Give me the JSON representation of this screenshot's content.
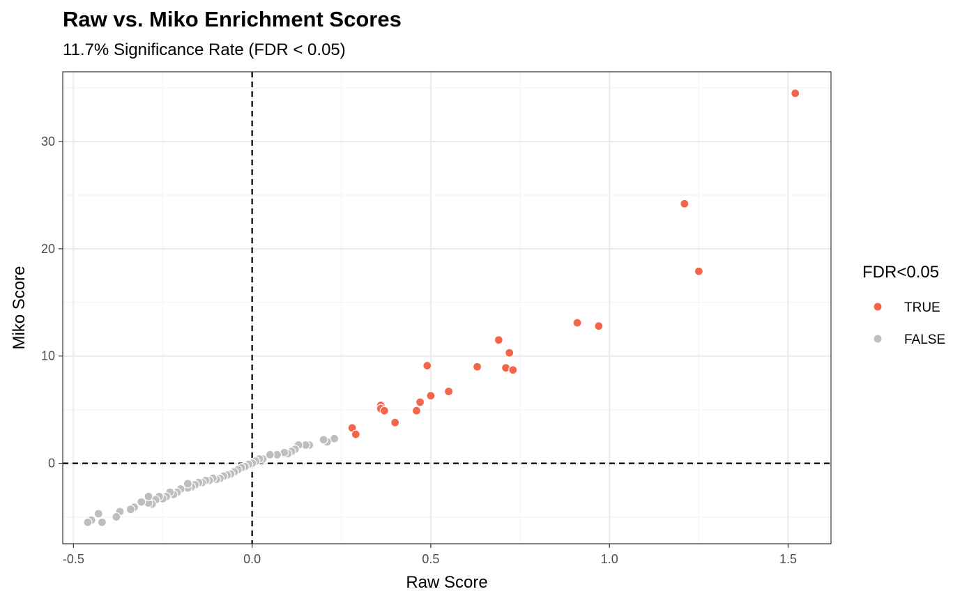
{
  "chart_data": {
    "type": "scatter",
    "title": "Raw vs. Miko Enrichment Scores",
    "subtitle": "11.7% Significance Rate (FDR < 0.05)",
    "xlabel": "Raw Score",
    "ylabel": "Miko Score",
    "xlim": [
      -0.53,
      1.62
    ],
    "ylim": [
      -7.5,
      36.5
    ],
    "x_ticks": [
      -0.5,
      0.0,
      0.5,
      1.0,
      1.5
    ],
    "x_tick_labels": [
      "-0.5",
      "0.0",
      "0.5",
      "1.0",
      "1.5"
    ],
    "y_ticks": [
      0,
      10,
      20,
      30
    ],
    "y_tick_labels": [
      "0",
      "10",
      "20",
      "30"
    ],
    "grid": true,
    "reference_lines": [
      {
        "axis": "x",
        "value": 0,
        "style": "dashed"
      },
      {
        "axis": "y",
        "value": 0,
        "style": "dashed"
      }
    ],
    "legend": {
      "title": "FDR<0.05",
      "placement": "right",
      "entries": [
        {
          "label": "TRUE",
          "color": "#f4664a"
        },
        {
          "label": "FALSE",
          "color": "#bebebe"
        }
      ]
    },
    "series": [
      {
        "name": "TRUE",
        "color": "#f4664a",
        "points": [
          [
            1.52,
            34.5
          ],
          [
            1.21,
            24.2
          ],
          [
            1.25,
            17.9
          ],
          [
            0.91,
            13.1
          ],
          [
            0.97,
            12.8
          ],
          [
            0.69,
            11.5
          ],
          [
            0.72,
            10.3
          ],
          [
            0.49,
            9.1
          ],
          [
            0.63,
            9.0
          ],
          [
            0.71,
            8.9
          ],
          [
            0.73,
            8.7
          ],
          [
            0.55,
            6.7
          ],
          [
            0.5,
            6.3
          ],
          [
            0.47,
            5.7
          ],
          [
            0.36,
            5.4
          ],
          [
            0.36,
            5.1
          ],
          [
            0.37,
            4.9
          ],
          [
            0.46,
            4.9
          ],
          [
            0.4,
            3.8
          ],
          [
            0.28,
            3.3
          ],
          [
            0.29,
            2.7
          ]
        ]
      },
      {
        "name": "FALSE",
        "color": "#bebebe",
        "points": [
          [
            0.23,
            2.3
          ],
          [
            0.21,
            2.0
          ],
          [
            0.2,
            2.2
          ],
          [
            0.16,
            1.7
          ],
          [
            0.15,
            1.7
          ],
          [
            0.13,
            1.7
          ],
          [
            0.12,
            1.3
          ],
          [
            0.11,
            1.1
          ],
          [
            0.1,
            0.9
          ],
          [
            0.09,
            1.0
          ],
          [
            0.07,
            0.8
          ],
          [
            0.05,
            0.8
          ],
          [
            0.03,
            0.4
          ],
          [
            0.02,
            0.4
          ],
          [
            0.01,
            0.2
          ],
          [
            0.0,
            0.0
          ],
          [
            -0.01,
            -0.1
          ],
          [
            -0.02,
            -0.3
          ],
          [
            -0.03,
            -0.4
          ],
          [
            -0.04,
            -0.6
          ],
          [
            -0.05,
            -0.8
          ],
          [
            -0.06,
            -1.0
          ],
          [
            -0.07,
            -1.1
          ],
          [
            -0.08,
            -1.2
          ],
          [
            -0.09,
            -1.4
          ],
          [
            -0.1,
            -1.5
          ],
          [
            -0.11,
            -1.4
          ],
          [
            -0.12,
            -1.6
          ],
          [
            -0.13,
            -1.6
          ],
          [
            -0.14,
            -1.8
          ],
          [
            -0.15,
            -1.8
          ],
          [
            -0.16,
            -2.0
          ],
          [
            -0.17,
            -2.2
          ],
          [
            -0.18,
            -2.3
          ],
          [
            -0.18,
            -1.9
          ],
          [
            -0.2,
            -2.4
          ],
          [
            -0.21,
            -2.7
          ],
          [
            -0.22,
            -2.9
          ],
          [
            -0.23,
            -2.7
          ],
          [
            -0.24,
            -3.1
          ],
          [
            -0.25,
            -3.3
          ],
          [
            -0.26,
            -3.1
          ],
          [
            -0.27,
            -3.4
          ],
          [
            -0.28,
            -3.8
          ],
          [
            -0.29,
            -3.7
          ],
          [
            -0.29,
            -3.1
          ],
          [
            -0.31,
            -3.6
          ],
          [
            -0.33,
            -4.1
          ],
          [
            -0.34,
            -4.3
          ],
          [
            -0.37,
            -4.5
          ],
          [
            -0.38,
            -5.0
          ],
          [
            -0.42,
            -5.5
          ],
          [
            -0.43,
            -4.7
          ],
          [
            -0.45,
            -5.3
          ],
          [
            -0.46,
            -5.5
          ]
        ]
      }
    ]
  }
}
